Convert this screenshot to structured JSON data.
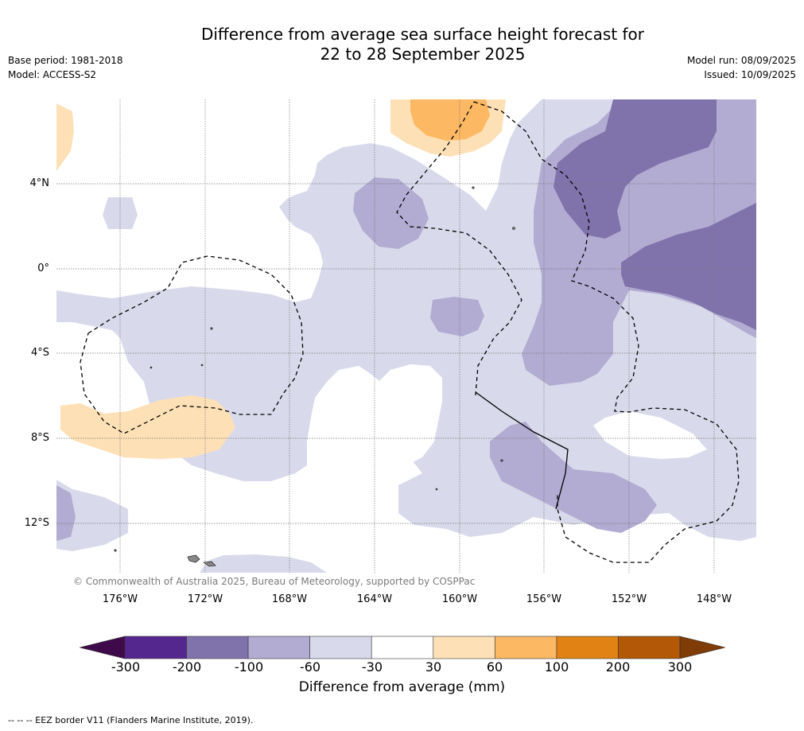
{
  "title_line1": "Difference from average sea surface height forecast for",
  "title_line2": "22 to 28 September 2025",
  "base_period": "Base period: 1981-2018",
  "model": "Model: ACCESS-S2",
  "model_run": "Model run: 08/09/2025",
  "issued": "Issued: 10/09/2025",
  "lat_labels": [
    "4°N",
    "0°",
    "4°S",
    "8°S",
    "12°S"
  ],
  "lon_labels": [
    "176°W",
    "172°W",
    "168°W",
    "164°W",
    "160°W",
    "156°W",
    "152°W",
    "148°W"
  ],
  "copyright": "© Commonwealth of Australia 2025, Bureau of Meteorology, supported by COSPPac",
  "colorbar": {
    "title": "Difference from average (mm)",
    "tick_labels": [
      "-300",
      "-200",
      "-100",
      "-60",
      "-30",
      "30",
      "60",
      "100",
      "200",
      "300"
    ],
    "colors": [
      "#3f0a4a",
      "#54278f",
      "#8073ac",
      "#b2abd2",
      "#d8daeb",
      "#ffffff",
      "#fee0b6",
      "#fdb863",
      "#e08214",
      "#b35806",
      "#7f3b08"
    ]
  },
  "footer": "--  --  -- EEZ border V11 (Flanders Marine Institute, 2019)."
}
